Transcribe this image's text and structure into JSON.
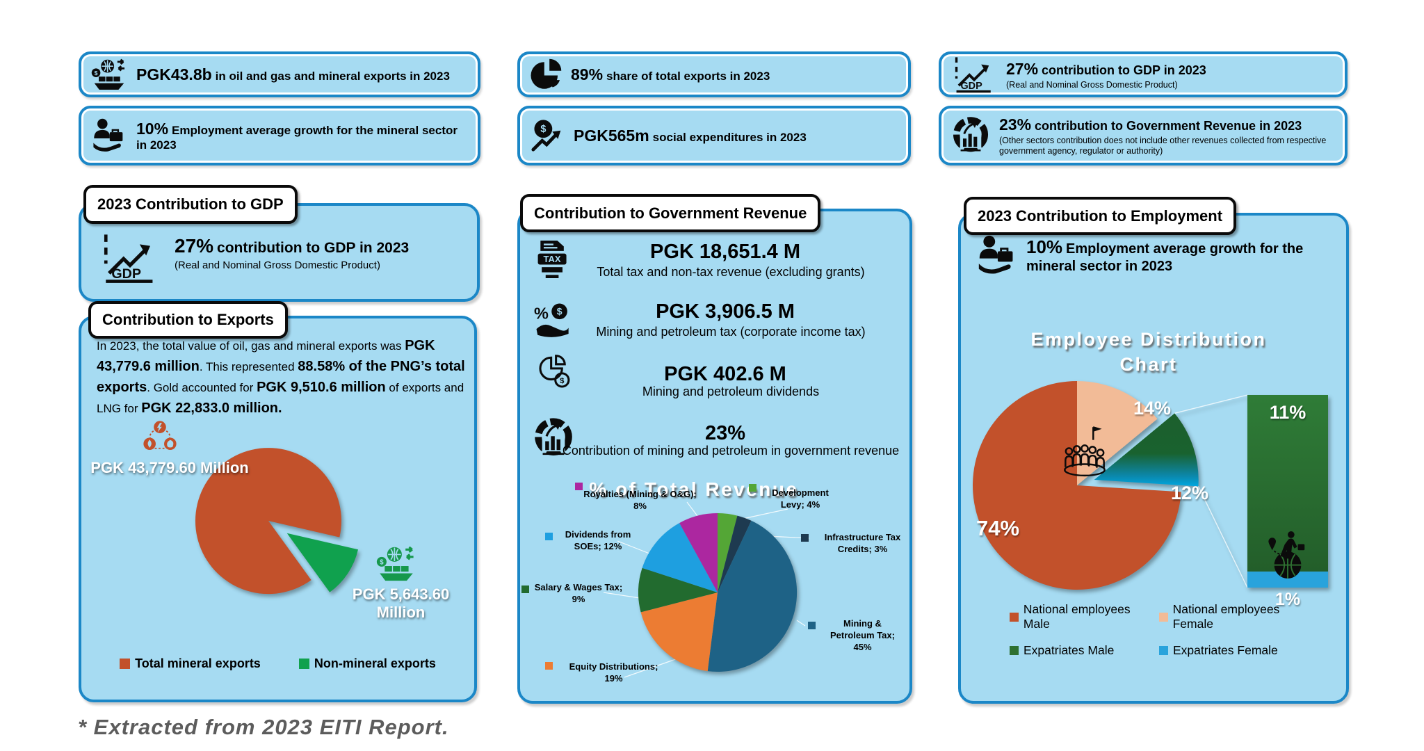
{
  "page": {
    "footnote": "* Extracted from 2023 EITI Report."
  },
  "colors": {
    "card_bg": "#A6DBF2",
    "card_border": "#1B87C7",
    "mineral_orange": "#C2512B",
    "nonmineral_green": "#10A14E",
    "white": "#FFFFFF"
  },
  "stat_cards": [
    {
      "icon": "cargo-ship-icon",
      "value": "PGK43.8b",
      "text": "in oil and gas and mineral exports in 2023"
    },
    {
      "icon": "pie-chart-icon",
      "value": "89%",
      "text": "share of total exports in 2023"
    },
    {
      "icon": "gdp-chart-icon",
      "value": "27%",
      "text": "contribution to GDP in 2023",
      "subtext": "(Real and Nominal Gross Domestic Product)"
    },
    {
      "icon": "worker-briefcase-icon",
      "value": "10%",
      "text": "Employment average growth for the mineral sector in 2023"
    },
    {
      "icon": "coin-growth-icon",
      "value": "PGK565m",
      "text": "social expenditures in 2023"
    },
    {
      "icon": "revenue-gauge-icon",
      "value": "23%",
      "text": "contribution to Government Revenue in 2023",
      "subtext": "(Other sectors contribution does not include other revenues collected from respective government agency, regulator or authority)"
    }
  ],
  "gdp_panel": {
    "tab": "2023 Contribution to GDP",
    "value": "27%",
    "text": "contribution to GDP in 2023",
    "subtext": "(Real and Nominal Gross Domestic Product)"
  },
  "exports_panel": {
    "tab": "Contribution to Exports",
    "paragraph": [
      {
        "t": "In 2023, the total value of oil, gas and mineral exports was ",
        "b": false
      },
      {
        "t": "PGK 43,779.6 million",
        "b": true
      },
      {
        "t": ". This represented ",
        "b": false
      },
      {
        "t": "88.58% of the PNG’s total exports",
        "b": true
      },
      {
        "t": ". Gold accounted for ",
        "b": false
      },
      {
        "t": "PGK 9,510.6 million",
        "b": true
      },
      {
        "t": " of exports and LNG for ",
        "b": false
      },
      {
        "t": "PGK 22,833.0 million.",
        "b": true
      }
    ]
  },
  "revenue_panel": {
    "tab": "Contribution to Government Revenue",
    "rows": [
      {
        "icon": "tax-document-icon",
        "value": "PGK 18,651.4 M",
        "label": "Total tax and non-tax revenue (excluding grants)"
      },
      {
        "icon": "percent-dollar-hand-icon",
        "value": "PGK 3,906.5 M",
        "label": "Mining and petroleum tax (corporate income tax)"
      },
      {
        "icon": "pie-dollar-icon",
        "value": "PGK 402.6 M",
        "label": "Mining and petroleum dividends"
      },
      {
        "icon": "revenue-gauge-icon",
        "value": "23%",
        "label": "Contribution of mining and petroleum in government revenue"
      }
    ]
  },
  "employment_panel": {
    "tab": "2023 Contribution to Employment",
    "value": "10%",
    "text": "Employment average growth for the mineral sector in 2023"
  },
  "chart_data": [
    {
      "type": "pie",
      "title": "Contribution to Exports",
      "labels": [
        "Total mineral exports",
        "Non-mineral exports"
      ],
      "values_pgk_million": [
        43779.6,
        5643.6
      ],
      "percents": [
        88.58,
        11.42
      ],
      "colors": [
        "#C2512B",
        "#10A14E"
      ],
      "data_labels": [
        "PGK 43,779.60 Million",
        "PGK 5,643.60 Million"
      ],
      "exploded_slice": "Non-mineral exports",
      "legend_position": "bottom"
    },
    {
      "type": "pie",
      "title": "% of Total Revenue",
      "start_angle_deg": 0,
      "direction": "clockwise",
      "slices": [
        {
          "label": "Development Levy",
          "pct": 4,
          "color": "#54A636",
          "lines": [
            "Development",
            "Levy; 4%"
          ]
        },
        {
          "label": "Infrastructure Tax Credits",
          "pct": 3,
          "color": "#1E3A50",
          "lines": [
            "Infrastructure Tax",
            "Credits; 3%"
          ]
        },
        {
          "label": "Mining & Petroleum Tax",
          "pct": 45,
          "color": "#1E6286",
          "lines": [
            "Mining &",
            "Petroleum Tax;",
            "45%"
          ]
        },
        {
          "label": "Equity Distributions",
          "pct": 19,
          "color": "#EC7C33",
          "lines": [
            "Equity Distributions;",
            "19%"
          ]
        },
        {
          "label": "Salary & Wages Tax",
          "pct": 9,
          "color": "#226B2F",
          "lines": [
            "Salary & Wages Tax;",
            "9%"
          ]
        },
        {
          "label": "Dividends from SOEs",
          "pct": 12,
          "color": "#1E9FE0",
          "lines": [
            "Dividends from",
            "SOEs; 12%"
          ]
        },
        {
          "label": "Royalties (Mining & O&G)",
          "pct": 8,
          "color": "#AC27A0",
          "lines": [
            "Royalties (Mining & O&G);",
            "8%"
          ]
        }
      ]
    },
    {
      "type": "bar-of-pie",
      "title": "Employee Distribution Chart",
      "title_lines": [
        "Employee Distribution",
        "Chart"
      ],
      "pie_slices": [
        {
          "label": "National employees Female",
          "pct": 14,
          "color": "#F2BB97",
          "display": "14%"
        },
        {
          "label": "Expatriates (total)",
          "pct": 12,
          "display": "12%",
          "exploded": true,
          "gradient": [
            [
              "0",
              "#1D5F2D"
            ],
            [
              "0.55",
              "#19622F"
            ],
            [
              "0.85",
              "#0C86A8"
            ],
            [
              "1",
              "#00A7E1"
            ]
          ]
        },
        {
          "label": "National employees Male",
          "pct": 74,
          "color": "#C2512B",
          "display": "74%"
        }
      ],
      "bar_segments": [
        {
          "label": "Expatriates Male",
          "pct": 11,
          "color": "#2E7031",
          "display": "11%"
        },
        {
          "label": "Expatriates Female",
          "pct": 1,
          "color": "#29A3DC",
          "display": "1%"
        }
      ],
      "bar_gradient": [
        [
          "0",
          "#2F7C37"
        ],
        [
          "1",
          "#235E2A"
        ]
      ],
      "legend": [
        {
          "label": "National employees Male",
          "color": "#C2512B"
        },
        {
          "label": "National employees Female",
          "color": "#F2BB97"
        },
        {
          "label": "Expatriates Male",
          "color": "#2E7031"
        },
        {
          "label": "Expatriates Female",
          "color": "#29A3DC"
        }
      ]
    }
  ]
}
